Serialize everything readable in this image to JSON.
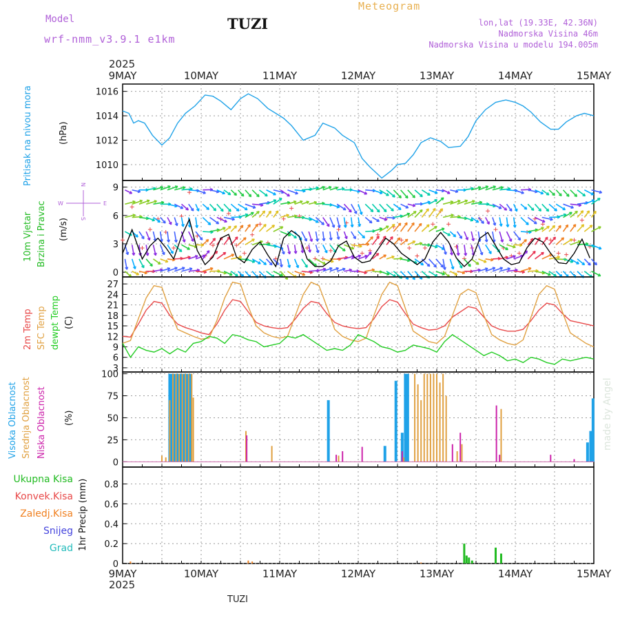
{
  "header": {
    "model_label": "Model",
    "model_name": "wrf-nmm_v3.9.1 e1km",
    "station_title": "TUZI",
    "meteogram_label": "Meteogram",
    "lonlat": "lon,lat (19.33E, 42.36N)",
    "elevation": "Nadmorska Visina 46m",
    "model_elevation": "Nadmorska Visina u modelu 194.005m"
  },
  "footer": {
    "station": "TUZI",
    "watermark": "made by Angel"
  },
  "colors": {
    "pressure": "#1fa2e8",
    "temp2m": "#e84848",
    "sfc": "#e0a040",
    "dewpt": "#22cc22",
    "wind_speed": "#000000",
    "high_cloud": "#1fa2e8",
    "mid_cloud": "#e0a040",
    "low_cloud": "#cc22aa",
    "total_precip": "#22bb22",
    "conv_precip": "#e84848",
    "frz_precip": "#f08020",
    "snow": "#4444dd",
    "grad": "#22bbbb",
    "title_purple": "#b060d8",
    "meteogram_orange": "#e8b050",
    "grid": "#999999"
  },
  "time_axis": {
    "year_top": "2025",
    "year_bottom": "2025",
    "ticks": [
      "9MAY",
      "10MAY",
      "11MAY",
      "12MAY",
      "13MAY",
      "14MAY",
      "15MAY"
    ]
  },
  "panel_labels": {
    "pressure": {
      "name": "Pritisak na nivou mora",
      "unit": "(hPa)"
    },
    "wind": {
      "name1": "10m Vjetar",
      "name2": "Brzina i Pravac",
      "unit": "(m/s)",
      "compass_n": "N",
      "compass_s": "S",
      "compass_w": "W",
      "compass_e": "E"
    },
    "temp": {
      "name1": "2m Temp",
      "name2": "SFC Temp",
      "name3": "dewpt Temp",
      "unit": "(C)"
    },
    "cloud": {
      "name1": "Visoka Oblacnost",
      "name2": "Srednja Oblacnost",
      "name3": "Niska Oblacnost",
      "unit": "(%)"
    },
    "precip": {
      "l1": "Ukupna Kisa",
      "l2": "Konvek.Kisa",
      "l3": "Zaledj.Kisa",
      "l4": "Snijeg",
      "l5": "Grad",
      "unit": "1hr Precip (mm)"
    }
  },
  "chart_data": [
    {
      "type": "line",
      "title": "Pritisak na nivou mora",
      "ylabel": "(hPa)",
      "ylim": [
        1008.7,
        1016.6
      ],
      "yticks": [
        "1010",
        "1012",
        "1014",
        "1016"
      ],
      "x_days": [
        0.0,
        0.08,
        0.14,
        0.2,
        0.28,
        0.38,
        0.5,
        0.6,
        0.7,
        0.8,
        0.92,
        1.05,
        1.15,
        1.25,
        1.38,
        1.5,
        1.6,
        1.72,
        1.85,
        1.95,
        2.05,
        2.15,
        2.3,
        2.45,
        2.55,
        2.7,
        2.8,
        2.95,
        3.05,
        3.15,
        3.3,
        3.42,
        3.5,
        3.6,
        3.7,
        3.8,
        3.92,
        4.05,
        4.15,
        4.3,
        4.4,
        4.5,
        4.62,
        4.75,
        4.88,
        5.0,
        5.1,
        5.2,
        5.32,
        5.45,
        5.55,
        5.65,
        5.78,
        5.88,
        6.0
      ],
      "series": [
        {
          "name": "Pritisak na nivou mora",
          "values": [
            1014.4,
            1014.2,
            1013.4,
            1013.6,
            1013.4,
            1012.4,
            1011.6,
            1012.2,
            1013.4,
            1014.2,
            1014.8,
            1015.7,
            1015.6,
            1015.2,
            1014.5,
            1015.4,
            1015.8,
            1015.4,
            1014.6,
            1014.2,
            1013.8,
            1013.2,
            1012.0,
            1012.4,
            1013.4,
            1013.0,
            1012.4,
            1011.8,
            1010.5,
            1009.8,
            1008.9,
            1009.5,
            1010.0,
            1010.1,
            1010.8,
            1011.8,
            1012.2,
            1011.9,
            1011.4,
            1011.5,
            1012.3,
            1013.6,
            1014.5,
            1015.1,
            1015.3,
            1015.1,
            1014.8,
            1014.3,
            1013.5,
            1012.9,
            1012.9,
            1013.5,
            1014.0,
            1014.2,
            1014.0
          ]
        }
      ]
    },
    {
      "type": "line",
      "title": "10m Vjetar Brzina i Pravac",
      "ylabel": "(m/s)",
      "ylim": [
        -0.5,
        9.7
      ],
      "yticks": [
        "0",
        "3",
        "6",
        "9"
      ],
      "x_days": [
        0.0,
        0.12,
        0.25,
        0.35,
        0.45,
        0.55,
        0.65,
        0.75,
        0.85,
        0.95,
        1.05,
        1.15,
        1.25,
        1.35,
        1.45,
        1.55,
        1.65,
        1.75,
        1.85,
        1.95,
        2.05,
        2.15,
        2.25,
        2.35,
        2.45,
        2.55,
        2.65,
        2.75,
        2.85,
        2.95,
        3.05,
        3.15,
        3.25,
        3.35,
        3.45,
        3.55,
        3.65,
        3.75,
        3.85,
        3.95,
        4.05,
        4.15,
        4.25,
        4.35,
        4.45,
        4.55,
        4.65,
        4.75,
        4.85,
        4.95,
        5.05,
        5.15,
        5.25,
        5.35,
        5.45,
        5.55,
        5.65,
        5.75,
        5.85,
        5.95
      ],
      "series": [
        {
          "name": "speed",
          "values": [
            2.0,
            4.5,
            1.4,
            2.8,
            3.6,
            2.6,
            1.4,
            3.8,
            5.6,
            2.3,
            0.8,
            1.6,
            3.6,
            4.0,
            1.6,
            1.0,
            2.4,
            3.2,
            1.8,
            0.6,
            3.6,
            4.4,
            3.8,
            1.4,
            0.6,
            0.6,
            1.2,
            2.8,
            3.3,
            1.6,
            1.0,
            1.2,
            2.4,
            3.6,
            3.0,
            2.0,
            1.4,
            0.8,
            1.4,
            3.2,
            4.2,
            3.2,
            1.5,
            0.6,
            1.4,
            3.6,
            4.2,
            2.8,
            1.4,
            0.8,
            1.0,
            2.6,
            3.6,
            3.2,
            2.0,
            1.0,
            0.9,
            2.0,
            3.5,
            1.5
          ]
        }
      ]
    },
    {
      "type": "line",
      "title": "2m Temp / SFC Temp / dewpt Temp",
      "ylabel": "(C)",
      "ylim": [
        1.8,
        29.0
      ],
      "yticks": [
        "3",
        "6",
        "9",
        "12",
        "15",
        "18",
        "21",
        "24",
        "27"
      ],
      "x_days": [
        0.0,
        0.1,
        0.2,
        0.3,
        0.4,
        0.5,
        0.6,
        0.7,
        0.8,
        0.9,
        1.0,
        1.1,
        1.2,
        1.3,
        1.4,
        1.5,
        1.6,
        1.7,
        1.8,
        1.9,
        2.0,
        2.1,
        2.2,
        2.3,
        2.4,
        2.5,
        2.6,
        2.7,
        2.8,
        2.9,
        3.0,
        3.1,
        3.2,
        3.3,
        3.4,
        3.5,
        3.6,
        3.7,
        3.8,
        3.9,
        4.0,
        4.1,
        4.2,
        4.3,
        4.4,
        4.5,
        4.6,
        4.7,
        4.8,
        4.9,
        5.0,
        5.1,
        5.2,
        5.3,
        5.4,
        5.5,
        5.6,
        5.7,
        5.8,
        5.9,
        6.0
      ],
      "series": [
        {
          "name": "2m Temp",
          "values": [
            12.0,
            11.8,
            15.5,
            19.5,
            22.0,
            21.5,
            18.0,
            15.5,
            14.5,
            13.8,
            13.0,
            12.5,
            15.5,
            19.5,
            22.5,
            22.0,
            19.0,
            16.0,
            15.0,
            14.5,
            14.2,
            14.5,
            17.0,
            20.0,
            22.0,
            21.5,
            18.5,
            16.0,
            15.0,
            14.5,
            14.2,
            14.5,
            17.0,
            20.5,
            22.5,
            21.8,
            18.5,
            15.5,
            14.5,
            13.8,
            14.0,
            15.0,
            17.5,
            19.0,
            20.5,
            20.0,
            17.5,
            15.0,
            14.0,
            13.5,
            13.5,
            14.0,
            16.5,
            19.5,
            21.5,
            21.0,
            18.5,
            16.5,
            16.0,
            15.5,
            15.0
          ]
        },
        {
          "name": "SFC Temp",
          "values": [
            10.0,
            10.8,
            17.0,
            23.0,
            26.5,
            26.0,
            19.5,
            14.0,
            13.0,
            12.0,
            11.2,
            11.5,
            16.5,
            23.0,
            27.5,
            27.0,
            20.5,
            15.0,
            13.0,
            12.0,
            11.5,
            12.0,
            18.0,
            24.0,
            27.5,
            26.5,
            20.5,
            14.0,
            12.0,
            11.0,
            10.5,
            11.5,
            18.0,
            24.0,
            27.5,
            26.5,
            20.0,
            13.5,
            12.0,
            10.5,
            10.0,
            12.0,
            18.0,
            24.0,
            25.5,
            24.5,
            18.0,
            12.5,
            11.0,
            10.0,
            9.5,
            11.0,
            17.5,
            24.0,
            26.5,
            25.5,
            19.0,
            13.0,
            11.5,
            10.0,
            9.0
          ]
        },
        {
          "name": "dewpt Temp",
          "values": [
            10.0,
            6.0,
            9.0,
            8.0,
            7.5,
            8.5,
            7.0,
            8.5,
            7.5,
            10.0,
            10.5,
            12.0,
            11.5,
            10.0,
            12.5,
            12.0,
            11.0,
            10.5,
            9.0,
            9.5,
            10.0,
            12.0,
            11.5,
            12.5,
            11.0,
            9.5,
            8.0,
            8.5,
            8.0,
            9.5,
            12.5,
            11.5,
            10.5,
            9.0,
            8.5,
            7.5,
            8.0,
            9.5,
            9.0,
            8.5,
            7.5,
            10.5,
            12.5,
            11.0,
            9.5,
            8.0,
            6.5,
            7.5,
            6.5,
            5.0,
            5.5,
            4.5,
            6.0,
            5.5,
            4.5,
            4.0,
            5.5,
            5.0,
            5.5,
            6.0,
            5.5
          ]
        }
      ]
    },
    {
      "type": "bar",
      "title": "Visoka / Srednja / Niska Oblacnost",
      "ylabel": "(%)",
      "ylim": [
        -6,
        102
      ],
      "yticks": [
        "0",
        "25",
        "50",
        "75",
        "100"
      ],
      "series": [
        {
          "name": "Visoka Oblacnost",
          "points": [
            [
              0.6,
              100
            ],
            [
              0.63,
              100
            ],
            [
              0.66,
              100
            ],
            [
              0.7,
              100
            ],
            [
              0.74,
              100
            ],
            [
              0.78,
              100
            ],
            [
              0.82,
              100
            ],
            [
              0.86,
              100
            ],
            [
              2.62,
              70
            ],
            [
              3.34,
              18
            ],
            [
              3.48,
              92
            ],
            [
              3.56,
              33
            ],
            [
              3.6,
              100
            ],
            [
              3.63,
              100
            ],
            [
              5.92,
              22
            ],
            [
              5.96,
              35
            ],
            [
              5.99,
              72
            ]
          ]
        },
        {
          "name": "Srednja Oblacnost",
          "points": [
            [
              0.5,
              7
            ],
            [
              0.55,
              5
            ],
            [
              0.6,
              70
            ],
            [
              0.64,
              100
            ],
            [
              0.68,
              100
            ],
            [
              0.72,
              100
            ],
            [
              0.76,
              100
            ],
            [
              0.8,
              100
            ],
            [
              0.84,
              100
            ],
            [
              0.88,
              100
            ],
            [
              0.9,
              73
            ],
            [
              1.57,
              35
            ],
            [
              1.9,
              18
            ],
            [
              2.75,
              7
            ],
            [
              3.58,
              5
            ],
            [
              3.72,
              100
            ],
            [
              3.76,
              88
            ],
            [
              3.8,
              70
            ],
            [
              3.84,
              100
            ],
            [
              3.88,
              100
            ],
            [
              3.92,
              100
            ],
            [
              3.96,
              100
            ],
            [
              4.0,
              100
            ],
            [
              4.04,
              90
            ],
            [
              4.08,
              100
            ],
            [
              4.12,
              75
            ],
            [
              4.26,
              12
            ],
            [
              4.32,
              20
            ],
            [
              4.82,
              60
            ]
          ]
        },
        {
          "name": "Niska Oblacnost",
          "points": [
            [
              1.58,
              30
            ],
            [
              2.72,
              8
            ],
            [
              2.8,
              12
            ],
            [
              3.05,
              17
            ],
            [
              3.56,
              12
            ],
            [
              4.2,
              20
            ],
            [
              4.3,
              33
            ],
            [
              4.76,
              64
            ],
            [
              4.8,
              8
            ],
            [
              5.45,
              8
            ],
            [
              5.75,
              3
            ]
          ]
        }
      ]
    },
    {
      "type": "bar",
      "title": "1hr Precip",
      "ylabel": "1hr Precip (mm)",
      "ylim": [
        0,
        0.97
      ],
      "yticks": [
        "0",
        "0.2",
        "0.4",
        "0.6",
        "0.8"
      ],
      "series": [
        {
          "name": "Ukupna Kisa",
          "points": [
            [
              4.35,
              0.2
            ],
            [
              4.38,
              0.08
            ],
            [
              4.41,
              0.06
            ],
            [
              4.45,
              0.03
            ],
            [
              4.75,
              0.16
            ],
            [
              4.82,
              0.1
            ]
          ]
        },
        {
          "name": "Zaledj.Kisa",
          "points": [
            [
              0.1,
              0.02
            ],
            [
              1.6,
              0.03
            ],
            [
              1.65,
              0.02
            ],
            [
              3.8,
              0.01
            ]
          ]
        }
      ]
    }
  ]
}
